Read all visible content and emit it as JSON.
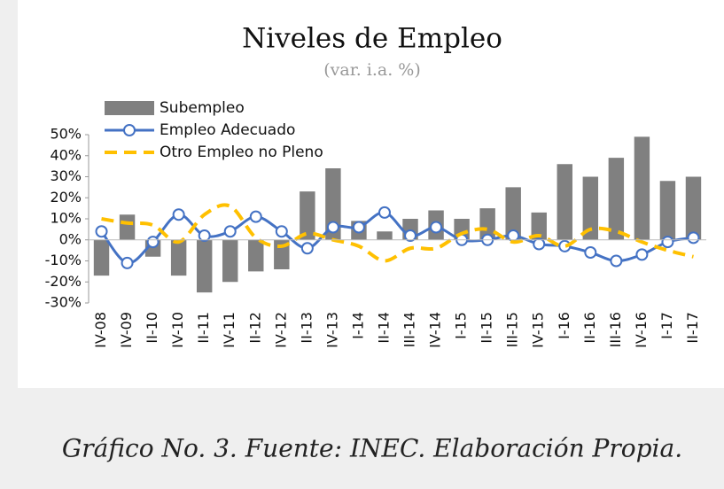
{
  "chart_data": {
    "type": "bar-line",
    "title": "Niveles de Empleo",
    "subtitle": "(var. i.a. %)",
    "caption": "Gráfico No. 3. Fuente: INEC. Elaboración Propia.",
    "categories": [
      "IV-08",
      "IV-09",
      "II-10",
      "IV-10",
      "II-11",
      "IV-11",
      "II-12",
      "IV-12",
      "II-13",
      "IV-13",
      "I-14",
      "II-14",
      "III-14",
      "IV-14",
      "I-15",
      "II-15",
      "III-15",
      "IV-15",
      "I-16",
      "II-16",
      "III-16",
      "IV-16",
      "I-17",
      "II-17"
    ],
    "series": [
      {
        "name": "Subempleo",
        "type": "bar",
        "color": "#808080",
        "values": [
          -17,
          12,
          -8,
          -17,
          -25,
          -20,
          -15,
          -14,
          23,
          34,
          9,
          4,
          10,
          14,
          10,
          15,
          25,
          13,
          36,
          30,
          39,
          49,
          28,
          30
        ]
      },
      {
        "name": "Empleo Adecuado",
        "type": "line",
        "color": "#4472c4",
        "values": [
          4,
          -11,
          -1,
          12,
          2,
          4,
          11,
          4,
          -4,
          6,
          6,
          13,
          2,
          6,
          0,
          0,
          2,
          -2,
          -3,
          -6,
          -10,
          -7,
          -1,
          1
        ]
      },
      {
        "name": "Otro Empleo no Pleno",
        "type": "dashed",
        "color": "#ffc000",
        "values": [
          10,
          8,
          7,
          -1,
          12,
          16,
          1,
          -3,
          3,
          0,
          -3,
          -10,
          -4,
          -4,
          3,
          5,
          -1,
          2,
          -3,
          5,
          4,
          -1,
          -5,
          -8
        ]
      }
    ],
    "ylim": [
      -30,
      50
    ],
    "yticks": [
      {
        "value": 50,
        "label": "50%"
      },
      {
        "value": 40,
        "label": "40%"
      },
      {
        "value": 30,
        "label": "30%"
      },
      {
        "value": 20,
        "label": "20%"
      },
      {
        "value": 10,
        "label": "10%"
      },
      {
        "value": 0,
        "label": "0%"
      },
      {
        "value": -10,
        "label": "-10%"
      },
      {
        "value": -20,
        "label": "-20%"
      },
      {
        "value": -30,
        "label": "-30%"
      }
    ]
  }
}
